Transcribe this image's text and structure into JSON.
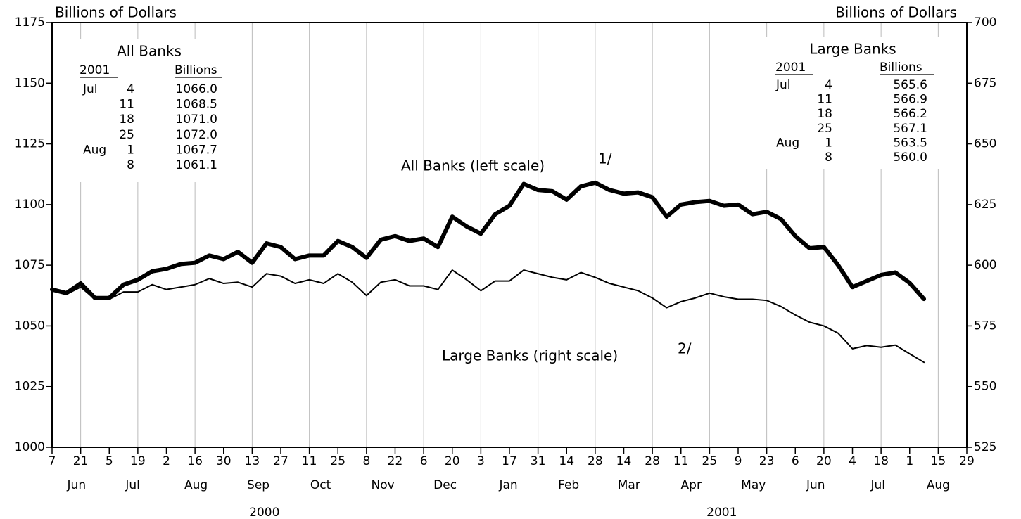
{
  "chart_data": {
    "type": "line",
    "y_label": "Billions of Dollars",
    "y2_label": "Billions of Dollars",
    "x": [
      "2000-06-07",
      "2000-06-14",
      "2000-06-21",
      "2000-06-28",
      "2000-07-05",
      "2000-07-12",
      "2000-07-19",
      "2000-07-26",
      "2000-08-02",
      "2000-08-09",
      "2000-08-16",
      "2000-08-23",
      "2000-08-30",
      "2000-09-06",
      "2000-09-13",
      "2000-09-20",
      "2000-09-27",
      "2000-10-04",
      "2000-10-11",
      "2000-10-18",
      "2000-10-25",
      "2000-11-01",
      "2000-11-08",
      "2000-11-15",
      "2000-11-22",
      "2000-11-29",
      "2000-12-06",
      "2000-12-13",
      "2000-12-20",
      "2000-12-27",
      "2001-01-03",
      "2001-01-10",
      "2001-01-17",
      "2001-01-24",
      "2001-01-31",
      "2001-02-07",
      "2001-02-14",
      "2001-02-21",
      "2001-02-28",
      "2001-03-07",
      "2001-03-14",
      "2001-03-21",
      "2001-03-28",
      "2001-04-04",
      "2001-04-11",
      "2001-04-18",
      "2001-04-25",
      "2001-05-02",
      "2001-05-09",
      "2001-05-16",
      "2001-05-23",
      "2001-05-30",
      "2001-06-06",
      "2001-06-13",
      "2001-06-20",
      "2001-06-27",
      "2001-07-04",
      "2001-07-11",
      "2001-07-18",
      "2001-07-25",
      "2001-08-01",
      "2001-08-08"
    ],
    "series": [
      {
        "label": "All Banks (left scale)",
        "note": "1/",
        "color": "#000000",
        "width": 6,
        "values": [
          1065,
          1063.5,
          1067.5,
          1061.5,
          1061.5,
          1067,
          1069,
          1072.5,
          1073.5,
          1075.5,
          1076,
          1079,
          1077.5,
          1080.5,
          1076,
          1084,
          1082.5,
          1077.5,
          1079,
          1079,
          1085,
          1082.5,
          1078,
          1085.5,
          1087,
          1085,
          1086,
          1082.5,
          1095,
          1091,
          1088,
          1096,
          1099.5,
          1108.5,
          1106,
          1105.5,
          1102,
          1107.5,
          1109,
          1106,
          1104.5,
          1105,
          1103,
          1095,
          1100,
          1101,
          1101.5,
          1099.5,
          1100,
          1096,
          1097,
          1094,
          1087,
          1082,
          1082.5,
          1075,
          1066.0,
          1068.5,
          1071.0,
          1072.0,
          1067.7,
          1061.1
        ]
      },
      {
        "label": "Large Banks (right scale)",
        "note": "2/",
        "color": "#000000",
        "width": 2,
        "axis": "y2",
        "values": [
          589.5,
          588,
          591,
          586,
          586,
          589,
          589,
          592,
          590,
          591,
          592,
          594.5,
          592.5,
          593,
          591,
          596.5,
          595.5,
          592.5,
          594,
          592.5,
          596.5,
          593,
          587.5,
          593,
          594,
          591.5,
          591.5,
          590,
          598,
          594,
          589.5,
          593.5,
          593.5,
          598,
          596.5,
          595,
          594,
          597,
          595,
          592.5,
          591,
          589.5,
          586.5,
          582.5,
          585,
          586.5,
          588.5,
          587,
          586,
          586,
          585.5,
          583,
          579.5,
          576.5,
          575,
          572,
          565.6,
          566.9,
          566.2,
          567.1,
          563.5,
          560.0
        ]
      }
    ],
    "xlim": [
      "2000-06-07",
      "2001-08-29"
    ],
    "xticks": [
      {
        "value": "2000-06-07",
        "label": "7"
      },
      {
        "value": "2000-06-21",
        "label": "21"
      },
      {
        "value": "2000-07-05",
        "label": "5"
      },
      {
        "value": "2000-07-19",
        "label": "19"
      },
      {
        "value": "2000-08-02",
        "label": "2"
      },
      {
        "value": "2000-08-16",
        "label": "16"
      },
      {
        "value": "2000-08-30",
        "label": "30"
      },
      {
        "value": "2000-09-13",
        "label": "13"
      },
      {
        "value": "2000-09-27",
        "label": "27"
      },
      {
        "value": "2000-10-11",
        "label": "11"
      },
      {
        "value": "2000-10-25",
        "label": "25"
      },
      {
        "value": "2000-11-08",
        "label": "8"
      },
      {
        "value": "2000-11-22",
        "label": "22"
      },
      {
        "value": "2000-12-06",
        "label": "6"
      },
      {
        "value": "2000-12-20",
        "label": "20"
      },
      {
        "value": "2001-01-03",
        "label": "3"
      },
      {
        "value": "2001-01-17",
        "label": "17"
      },
      {
        "value": "2001-01-31",
        "label": "31"
      },
      {
        "value": "2001-02-14",
        "label": "14"
      },
      {
        "value": "2001-02-28",
        "label": "28"
      },
      {
        "value": "2001-03-14",
        "label": "14"
      },
      {
        "value": "2001-03-28",
        "label": "28"
      },
      {
        "value": "2001-04-11",
        "label": "11"
      },
      {
        "value": "2001-04-25",
        "label": "25"
      },
      {
        "value": "2001-05-09",
        "label": "9"
      },
      {
        "value": "2001-05-23",
        "label": "23"
      },
      {
        "value": "2001-06-06",
        "label": "6"
      },
      {
        "value": "2001-06-20",
        "label": "20"
      },
      {
        "value": "2001-07-04",
        "label": "4"
      },
      {
        "value": "2001-07-18",
        "label": "18"
      },
      {
        "value": "2001-08-01",
        "label": "1"
      },
      {
        "value": "2001-08-15",
        "label": "15"
      },
      {
        "value": "2001-08-29",
        "label": "29"
      }
    ],
    "months": [
      {
        "value": "2000-06",
        "label": "Jun"
      },
      {
        "value": "2000-07",
        "label": "Jul"
      },
      {
        "value": "2000-08",
        "label": "Aug"
      },
      {
        "value": "2000-09",
        "label": "Sep"
      },
      {
        "value": "2000-10",
        "label": "Oct"
      },
      {
        "value": "2000-11",
        "label": "Nov"
      },
      {
        "value": "2000-12",
        "label": "Dec"
      },
      {
        "value": "2001-01",
        "label": "Jan"
      },
      {
        "value": "2001-02",
        "label": "Feb"
      },
      {
        "value": "2001-03",
        "label": "Mar"
      },
      {
        "value": "2001-04",
        "label": "Apr"
      },
      {
        "value": "2001-05",
        "label": "May"
      },
      {
        "value": "2001-06",
        "label": "Jun"
      },
      {
        "value": "2001-07",
        "label": "Jul"
      },
      {
        "value": "2001-08",
        "label": "Aug"
      }
    ],
    "years": [
      2000,
      2001
    ],
    "ylim": [
      1000,
      1175
    ],
    "yticks": [
      1000,
      1025,
      1050,
      1075,
      1100,
      1125,
      1150,
      1175
    ],
    "y2lim": [
      525,
      700
    ],
    "y2ticks": [
      525,
      550,
      575,
      600,
      625,
      650,
      675,
      700
    ],
    "grid": true,
    "insets": [
      {
        "title": "All Banks",
        "headers": [
          "2001",
          "Billions"
        ],
        "rows": [
          {
            "month": "Jul",
            "day": "4",
            "value": "1066.0"
          },
          {
            "day": "11",
            "value": "1068.5"
          },
          {
            "day": "18",
            "value": "1071.0"
          },
          {
            "day": "25",
            "value": "1072.0"
          },
          {
            "month": "Aug",
            "day": "1",
            "value": "1067.7"
          },
          {
            "day": "8",
            "value": "1061.1"
          }
        ]
      },
      {
        "title": "Large Banks",
        "headers": [
          "2001",
          "Billions"
        ],
        "rows": [
          {
            "month": "Jul",
            "day": "4",
            "value": "565.6"
          },
          {
            "day": "11",
            "value": "566.9"
          },
          {
            "day": "18",
            "value": "566.2"
          },
          {
            "day": "25",
            "value": "567.1"
          },
          {
            "month": "Aug",
            "day": "1",
            "value": "563.5"
          },
          {
            "day": "8",
            "value": "560.0"
          }
        ]
      }
    ]
  }
}
